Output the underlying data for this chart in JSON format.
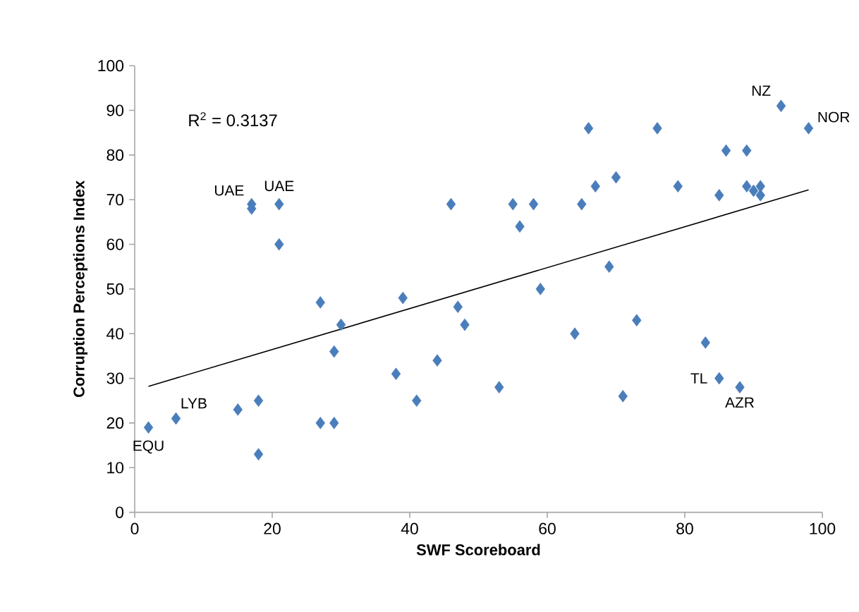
{
  "chart_data": {
    "type": "scatter",
    "xlabel": "SWF Scoreboard",
    "ylabel": "Corruption Perceptions Index",
    "xlim": [
      0,
      100
    ],
    "ylim": [
      0,
      100
    ],
    "xticks": [
      0,
      20,
      40,
      60,
      80,
      100
    ],
    "yticks": [
      0,
      10,
      20,
      30,
      40,
      50,
      60,
      70,
      80,
      90,
      100
    ],
    "grid": false,
    "series": [
      {
        "marker": "diamond",
        "color": "#4a7ebb",
        "x": [
          2,
          6,
          15,
          17,
          17,
          18,
          18,
          21,
          21,
          27,
          27,
          29,
          29,
          30,
          38,
          39,
          41,
          44,
          46,
          47,
          48,
          53,
          55,
          56,
          58,
          59,
          64,
          65,
          66,
          67,
          69,
          70,
          71,
          73,
          76,
          79,
          83,
          85,
          85,
          86,
          88,
          89,
          89,
          90,
          91,
          91,
          94,
          98
        ],
        "values": [
          19,
          21,
          23,
          68,
          69,
          25,
          13,
          69,
          60,
          47,
          20,
          20,
          36,
          42,
          31,
          48,
          25,
          34,
          69,
          46,
          42,
          28,
          69,
          64,
          69,
          50,
          40,
          69,
          86,
          73,
          55,
          75,
          26,
          43,
          86,
          73,
          38,
          71,
          30,
          81,
          28,
          81,
          73,
          72,
          73,
          71,
          91,
          86
        ]
      },
      {
        "type": "line",
        "marker": "none",
        "color": "#000000",
        "x": [
          2,
          98
        ],
        "values": [
          28.2,
          72.2
        ]
      }
    ],
    "annotations": [
      "R$^{2}$ = 0.3137",
      {
        "text": "EQU",
        "x": 2,
        "y": 19
      },
      {
        "text": "LYB",
        "x": 6,
        "y": 21
      },
      {
        "text": "UAE",
        "x": 17,
        "y": 68
      },
      {
        "text": "UAE",
        "x": 21,
        "y": 69
      },
      {
        "text": "TL",
        "x": 85,
        "y": 30
      },
      {
        "text": "AZR",
        "x": 88,
        "y": 28
      },
      {
        "text": "NZ",
        "x": 94,
        "y": 91
      },
      {
        "text": "NOR",
        "x": 98,
        "y": 86
      }
    ]
  }
}
